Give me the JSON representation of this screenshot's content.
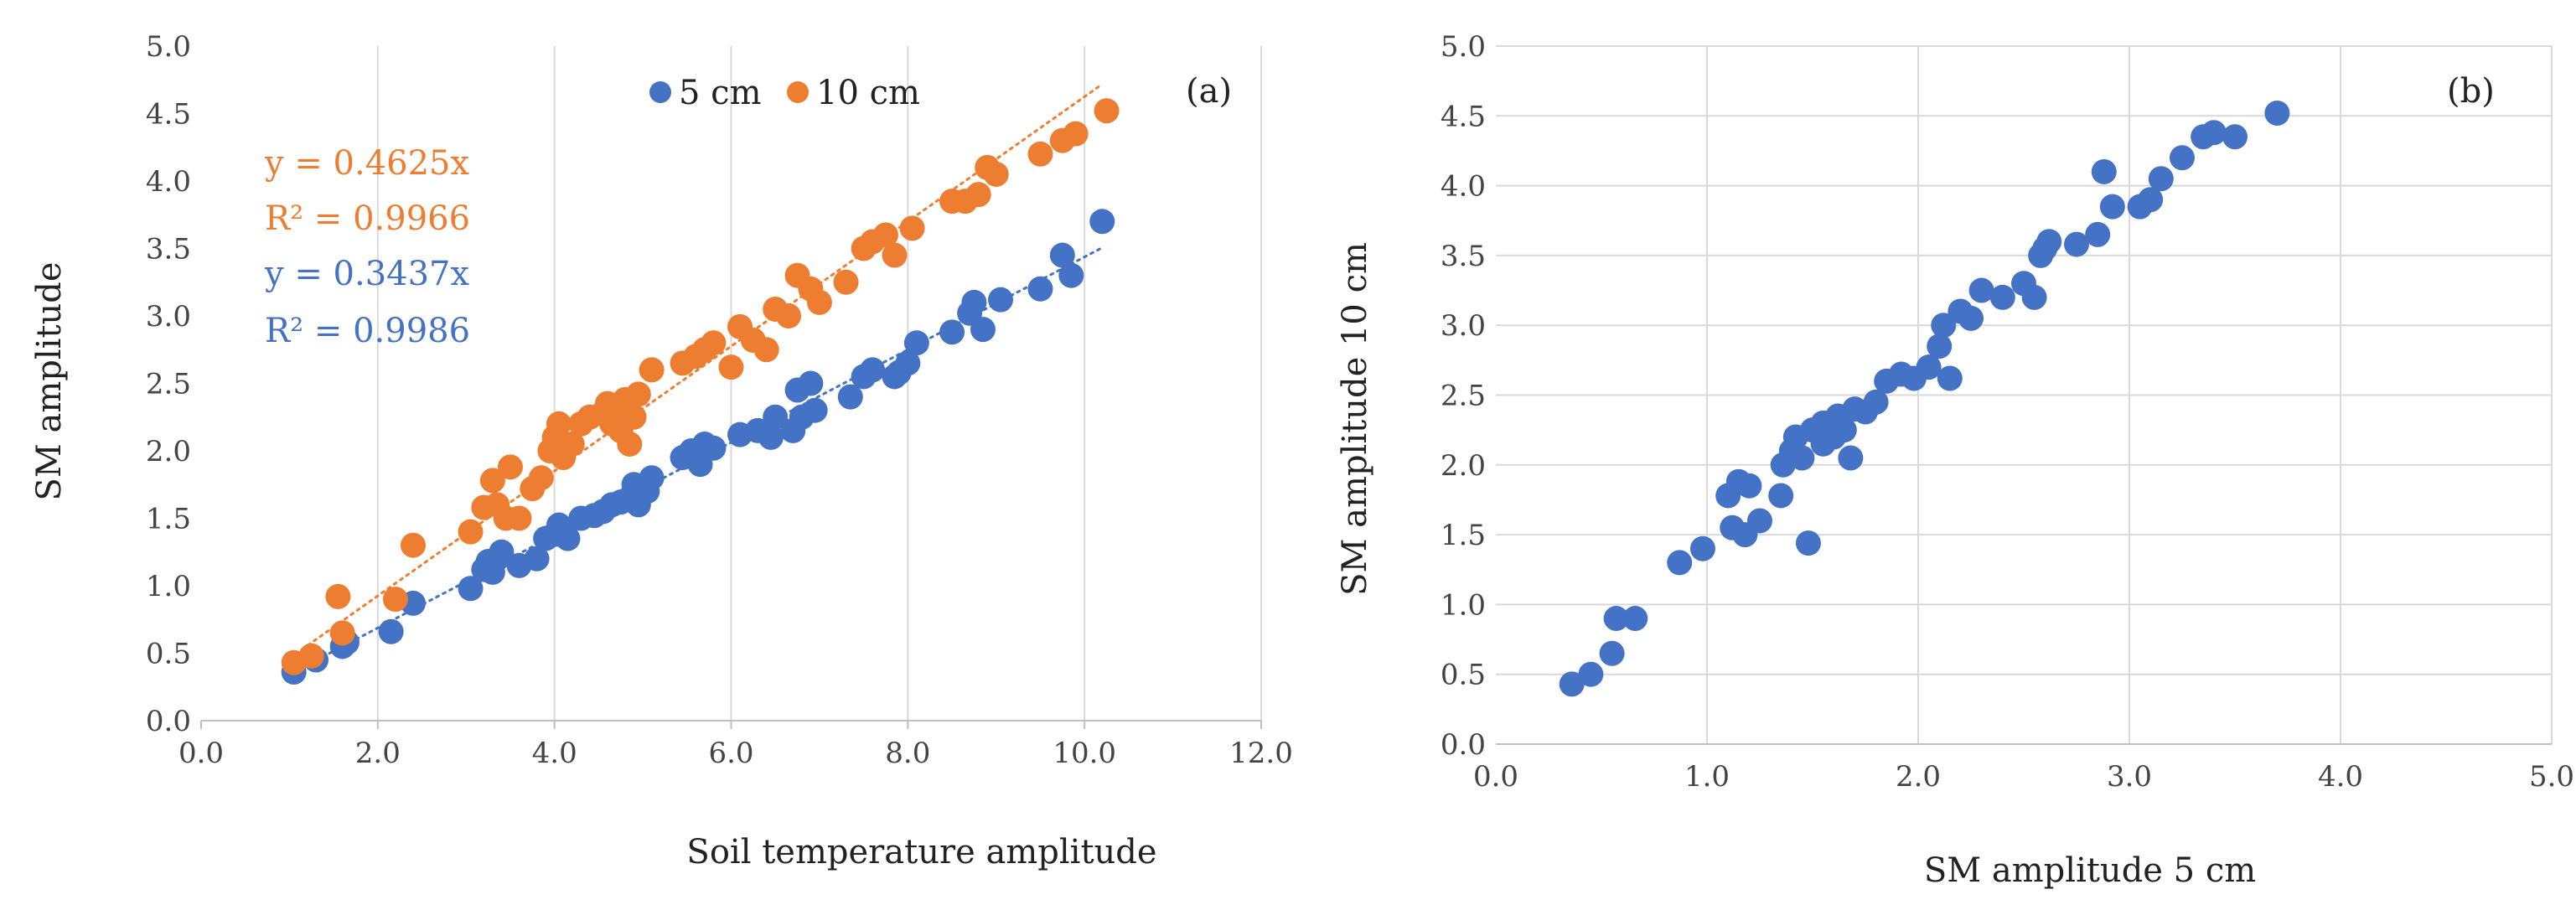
{
  "colors": {
    "series_5cm": "#4472C4",
    "series_10cm": "#ED7D31",
    "grid": "#d9d9d9",
    "axis": "#bfbfbf"
  },
  "chart_data": [
    {
      "type": "scatter",
      "panel_label": "(a)",
      "xlabel": "Soil  temperature amplitude",
      "ylabel": "SM amplitude",
      "xlim": [
        0,
        12
      ],
      "ylim": [
        0,
        5
      ],
      "xticks": [
        "0.0",
        "2.0",
        "4.0",
        "6.0",
        "8.0",
        "10.0",
        "12.0"
      ],
      "yticks": [
        "0.0",
        "0.5",
        "1.0",
        "1.5",
        "2.0",
        "2.5",
        "3.0",
        "3.5",
        "4.0",
        "4.5",
        "5.0"
      ],
      "grid": "vertical",
      "legend": [
        {
          "name": "5 cm",
          "color": "#4472C4"
        },
        {
          "name": "10 cm",
          "color": "#ED7D31"
        }
      ],
      "annotations": {
        "eq_10": "y = 0.4625x",
        "r2_10": "R² = 0.9966",
        "eq_5": "y = 0.3437x",
        "r2_5": "R² = 0.9986"
      },
      "trendlines": [
        {
          "series": "10 cm",
          "slope": 0.4625,
          "x": [
            1.0,
            10.2
          ]
        },
        {
          "series": "5 cm",
          "slope": 0.3437,
          "x": [
            1.0,
            10.2
          ]
        }
      ],
      "series": [
        {
          "name": "5 cm",
          "color": "#4472C4",
          "points": [
            [
              1.05,
              0.36
            ],
            [
              1.3,
              0.45
            ],
            [
              1.6,
              0.55
            ],
            [
              1.65,
              0.58
            ],
            [
              2.15,
              0.66
            ],
            [
              2.4,
              0.87
            ],
            [
              3.05,
              0.98
            ],
            [
              3.2,
              1.12
            ],
            [
              3.25,
              1.18
            ],
            [
              3.35,
              1.2
            ],
            [
              3.4,
              1.25
            ],
            [
              3.3,
              1.1
            ],
            [
              3.6,
              1.15
            ],
            [
              3.8,
              1.2
            ],
            [
              3.9,
              1.35
            ],
            [
              4.0,
              1.38
            ],
            [
              4.05,
              1.45
            ],
            [
              4.15,
              1.35
            ],
            [
              4.3,
              1.5
            ],
            [
              4.45,
              1.52
            ],
            [
              4.55,
              1.55
            ],
            [
              4.65,
              1.6
            ],
            [
              4.75,
              1.62
            ],
            [
              4.85,
              1.65
            ],
            [
              4.9,
              1.75
            ],
            [
              4.95,
              1.6
            ],
            [
              5.05,
              1.7
            ],
            [
              5.1,
              1.8
            ],
            [
              5.45,
              1.95
            ],
            [
              5.55,
              2.0
            ],
            [
              5.65,
              1.9
            ],
            [
              5.7,
              2.05
            ],
            [
              5.8,
              2.02
            ],
            [
              6.1,
              2.12
            ],
            [
              6.3,
              2.15
            ],
            [
              6.45,
              2.1
            ],
            [
              6.5,
              2.25
            ],
            [
              6.7,
              2.15
            ],
            [
              6.8,
              2.25
            ],
            [
              6.75,
              2.45
            ],
            [
              6.9,
              2.5
            ],
            [
              6.95,
              2.3
            ],
            [
              7.35,
              2.4
            ],
            [
              7.5,
              2.55
            ],
            [
              7.6,
              2.6
            ],
            [
              7.85,
              2.55
            ],
            [
              7.9,
              2.58
            ],
            [
              8.0,
              2.65
            ],
            [
              8.1,
              2.8
            ],
            [
              8.5,
              2.88
            ],
            [
              8.7,
              3.02
            ],
            [
              8.75,
              3.1
            ],
            [
              8.85,
              2.9
            ],
            [
              9.05,
              3.12
            ],
            [
              9.5,
              3.2
            ],
            [
              9.75,
              3.45
            ],
            [
              9.85,
              3.3
            ],
            [
              10.2,
              3.7
            ]
          ]
        },
        {
          "name": "10 cm",
          "color": "#ED7D31",
          "points": [
            [
              1.05,
              0.43
            ],
            [
              1.25,
              0.48
            ],
            [
              1.6,
              0.65
            ],
            [
              1.55,
              0.92
            ],
            [
              2.2,
              0.9
            ],
            [
              2.4,
              1.3
            ],
            [
              3.05,
              1.4
            ],
            [
              3.2,
              1.58
            ],
            [
              3.35,
              1.6
            ],
            [
              3.45,
              1.5
            ],
            [
              3.3,
              1.78
            ],
            [
              3.5,
              1.88
            ],
            [
              3.6,
              1.5
            ],
            [
              3.75,
              1.72
            ],
            [
              3.85,
              1.8
            ],
            [
              3.95,
              2.0
            ],
            [
              4.0,
              2.1
            ],
            [
              4.05,
              2.2
            ],
            [
              4.1,
              1.95
            ],
            [
              4.2,
              2.05
            ],
            [
              4.3,
              2.2
            ],
            [
              4.4,
              2.25
            ],
            [
              4.55,
              2.28
            ],
            [
              4.6,
              2.35
            ],
            [
              4.65,
              2.2
            ],
            [
              4.7,
              2.3
            ],
            [
              4.75,
              2.15
            ],
            [
              4.8,
              2.38
            ],
            [
              4.85,
              2.05
            ],
            [
              4.9,
              2.25
            ],
            [
              4.95,
              2.42
            ],
            [
              5.1,
              2.6
            ],
            [
              5.45,
              2.65
            ],
            [
              5.6,
              2.7
            ],
            [
              5.7,
              2.75
            ],
            [
              5.8,
              2.8
            ],
            [
              6.0,
              2.62
            ],
            [
              6.1,
              2.92
            ],
            [
              6.25,
              2.82
            ],
            [
              6.4,
              2.75
            ],
            [
              6.5,
              3.05
            ],
            [
              6.65,
              3.0
            ],
            [
              6.75,
              3.3
            ],
            [
              6.9,
              3.2
            ],
            [
              7.0,
              3.1
            ],
            [
              7.3,
              3.25
            ],
            [
              7.5,
              3.5
            ],
            [
              7.6,
              3.55
            ],
            [
              7.75,
              3.6
            ],
            [
              7.85,
              3.45
            ],
            [
              8.05,
              3.65
            ],
            [
              8.5,
              3.85
            ],
            [
              8.65,
              3.85
            ],
            [
              8.8,
              3.9
            ],
            [
              8.9,
              4.1
            ],
            [
              9.0,
              4.05
            ],
            [
              9.5,
              4.2
            ],
            [
              9.75,
              4.3
            ],
            [
              9.9,
              4.35
            ],
            [
              10.25,
              4.52
            ]
          ]
        }
      ]
    },
    {
      "type": "scatter",
      "panel_label": "(b)",
      "xlabel": "SM amplitude 5 cm",
      "ylabel": "SM amplitude 10 cm",
      "xlim": [
        0,
        5
      ],
      "ylim": [
        0,
        5
      ],
      "xticks": [
        "0.0",
        "1.0",
        "2.0",
        "3.0",
        "4.0",
        "5.0"
      ],
      "yticks": [
        "0.0",
        "0.5",
        "1.0",
        "1.5",
        "2.0",
        "2.5",
        "3.0",
        "3.5",
        "4.0",
        "4.5",
        "5.0"
      ],
      "grid": "both",
      "series": [
        {
          "name": "SM amplitude",
          "color": "#4472C4",
          "points": [
            [
              0.36,
              0.43
            ],
            [
              0.45,
              0.5
            ],
            [
              0.55,
              0.65
            ],
            [
              0.57,
              0.9
            ],
            [
              0.66,
              0.9
            ],
            [
              0.87,
              1.3
            ],
            [
              0.98,
              1.4
            ],
            [
              1.1,
              1.78
            ],
            [
              1.12,
              1.55
            ],
            [
              1.18,
              1.5
            ],
            [
              1.15,
              1.88
            ],
            [
              1.2,
              1.85
            ],
            [
              1.25,
              1.6
            ],
            [
              1.35,
              1.78
            ],
            [
              1.36,
              2.0
            ],
            [
              1.4,
              2.1
            ],
            [
              1.42,
              2.2
            ],
            [
              1.45,
              2.05
            ],
            [
              1.48,
              1.44
            ],
            [
              1.5,
              2.25
            ],
            [
              1.55,
              2.15
            ],
            [
              1.55,
              2.3
            ],
            [
              1.6,
              2.2
            ],
            [
              1.62,
              2.35
            ],
            [
              1.65,
              2.25
            ],
            [
              1.68,
              2.05
            ],
            [
              1.7,
              2.4
            ],
            [
              1.75,
              2.38
            ],
            [
              1.8,
              2.45
            ],
            [
              1.85,
              2.6
            ],
            [
              1.92,
              2.65
            ],
            [
              1.98,
              2.62
            ],
            [
              2.05,
              2.7
            ],
            [
              2.1,
              2.85
            ],
            [
              2.12,
              3.0
            ],
            [
              2.15,
              2.62
            ],
            [
              2.2,
              3.1
            ],
            [
              2.25,
              3.05
            ],
            [
              2.3,
              3.25
            ],
            [
              2.4,
              3.2
            ],
            [
              2.5,
              3.3
            ],
            [
              2.55,
              3.2
            ],
            [
              2.58,
              3.5
            ],
            [
              2.6,
              3.55
            ],
            [
              2.62,
              3.6
            ],
            [
              2.75,
              3.58
            ],
            [
              2.85,
              3.65
            ],
            [
              2.88,
              4.1
            ],
            [
              2.92,
              3.85
            ],
            [
              3.05,
              3.85
            ],
            [
              3.1,
              3.9
            ],
            [
              3.15,
              4.05
            ],
            [
              3.25,
              4.2
            ],
            [
              3.35,
              4.35
            ],
            [
              3.4,
              4.38
            ],
            [
              3.5,
              4.35
            ],
            [
              3.7,
              4.52
            ]
          ]
        }
      ]
    }
  ]
}
